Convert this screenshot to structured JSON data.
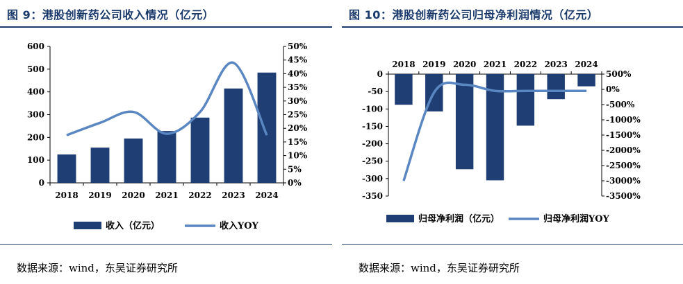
{
  "colors": {
    "bar": "#1f3e74",
    "line": "#5a86c2",
    "title": "#1a3a6b"
  },
  "left": {
    "title": "图 9：港股创新药公司收入情况（亿元）",
    "source": "数据来源：wind，东吴证券研究所"
  },
  "right": {
    "title": "图 10：港股创新药公司归母净利润情况（亿元）",
    "source": "数据来源：wind，东吴证券研究所"
  },
  "chart_data": [
    {
      "type": "bar",
      "categories": [
        "2018",
        "2019",
        "2020",
        "2021",
        "2022",
        "2023",
        "2024"
      ],
      "series": [
        {
          "name": "收入（亿元）",
          "type": "bar",
          "axis": "left",
          "values": [
            125,
            155,
            195,
            228,
            287,
            415,
            485
          ]
        },
        {
          "name": "收入YOY",
          "type": "line",
          "axis": "right",
          "values": [
            17.5,
            22,
            26,
            18,
            26,
            44,
            17.5
          ]
        }
      ],
      "ylim": [
        0,
        600
      ],
      "yticks": [
        "0",
        "100",
        "200",
        "300",
        "400",
        "500",
        "600"
      ],
      "y2lim": [
        0,
        50
      ],
      "y2ticks": [
        "0%",
        "5%",
        "10%",
        "15%",
        "20%",
        "25%",
        "30%",
        "35%",
        "40%",
        "45%",
        "50%"
      ],
      "legend_position": "bottom"
    },
    {
      "type": "bar",
      "categories": [
        "2018",
        "2019",
        "2020",
        "2021",
        "2022",
        "2023",
        "2024"
      ],
      "series": [
        {
          "name": "归母净利润（亿元）",
          "type": "bar",
          "axis": "left",
          "values": [
            -88,
            -107,
            -273,
            -305,
            -148,
            -72,
            -35
          ]
        },
        {
          "name": "归母净利润YOY",
          "type": "line",
          "axis": "right",
          "values": [
            -3000,
            -100,
            150,
            -50,
            -50,
            -50,
            -50
          ]
        }
      ],
      "ylim": [
        -350,
        0
      ],
      "yticks": [
        "0",
        "-50",
        "-100",
        "-150",
        "-200",
        "-250",
        "-300",
        "-350"
      ],
      "y2lim": [
        -3500,
        500
      ],
      "y2ticks": [
        "500%",
        "0%",
        "-500%",
        "-1000%",
        "-1500%",
        "-2000%",
        "-2500%",
        "-3000%",
        "-3500%"
      ],
      "xaxis_position": "top",
      "legend_position": "bottom"
    }
  ]
}
